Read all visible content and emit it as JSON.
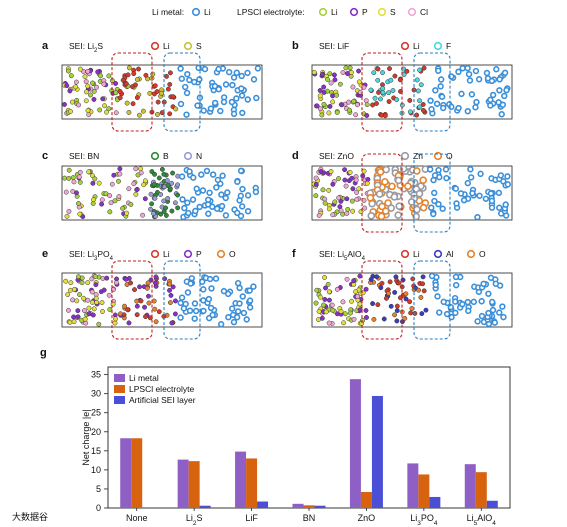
{
  "legend_top": {
    "li_metal_label": "Li metal:",
    "li_metal_items": [
      {
        "label": "Li",
        "color": "#3b8fd9"
      }
    ],
    "electrolyte_label": "LPSCl electrolyte:",
    "electrolyte_items": [
      {
        "label": "Li",
        "color": "#a6d13b"
      },
      {
        "label": "P",
        "color": "#8a2fc9"
      },
      {
        "label": "S",
        "color": "#e3df3a"
      },
      {
        "label": "Cl",
        "color": "#f2a6d6"
      }
    ]
  },
  "panels": [
    {
      "letter": "a",
      "sei_label": "SEI: Li",
      "sei_sub": "2",
      "sei_tail": "S",
      "legend": [
        {
          "label": "Li",
          "color": "#d43a2a"
        },
        {
          "label": "S",
          "color": "#c9c23a"
        }
      ]
    },
    {
      "letter": "b",
      "sei_label": "SEI: LiF",
      "sei_sub": "",
      "sei_tail": "",
      "legend": [
        {
          "label": "Li",
          "color": "#d43a2a"
        },
        {
          "label": "F",
          "color": "#46d7df"
        }
      ]
    },
    {
      "letter": "c",
      "sei_label": "SEI: BN",
      "sei_sub": "",
      "sei_tail": "",
      "legend": [
        {
          "label": "B",
          "color": "#2f8a3a"
        },
        {
          "label": "N",
          "color": "#9b9ad8"
        }
      ]
    },
    {
      "letter": "d",
      "sei_label": "SEI: ZnO",
      "sei_sub": "",
      "sei_tail": "",
      "legend": [
        {
          "label": "Zn",
          "color": "#9a9aa3"
        },
        {
          "label": "O",
          "color": "#e6832a"
        }
      ]
    },
    {
      "letter": "e",
      "sei_label": "SEI: Li",
      "sei_sub": "3",
      "sei_tail": "PO",
      "sei_sub2": "4",
      "legend": [
        {
          "label": "Li",
          "color": "#d43a2a"
        },
        {
          "label": "P",
          "color": "#8a2fc9"
        },
        {
          "label": "O",
          "color": "#e6832a"
        }
      ]
    },
    {
      "letter": "f",
      "sei_label": "SEI: Li",
      "sei_sub": "5",
      "sei_tail": "AlO",
      "sei_sub2": "4",
      "legend": [
        {
          "label": "Li",
          "color": "#d43a2a"
        },
        {
          "label": "Al",
          "color": "#3a3ac2"
        },
        {
          "label": "O",
          "color": "#e6832a"
        }
      ]
    }
  ],
  "chart_letter": "g",
  "chart_data": {
    "type": "bar",
    "categories": [
      "None",
      "Li2S",
      "LiF",
      "BN",
      "ZnO",
      "Li3PO4",
      "Li5AlO4"
    ],
    "category_display": [
      {
        "main": "None",
        "parts": []
      },
      {
        "main": "Li",
        "parts": [
          {
            "sub": "2"
          },
          {
            "text": "S"
          }
        ]
      },
      {
        "main": "LiF",
        "parts": []
      },
      {
        "main": "BN",
        "parts": []
      },
      {
        "main": "ZnO",
        "parts": []
      },
      {
        "main": "Li",
        "parts": [
          {
            "sub": "3"
          },
          {
            "text": "PO"
          },
          {
            "sub": "4"
          }
        ]
      },
      {
        "main": "Li",
        "parts": [
          {
            "sub": "5"
          },
          {
            "text": "AlO"
          },
          {
            "sub": "4"
          }
        ]
      }
    ],
    "series": [
      {
        "name": "Li metal",
        "color": "#8e5fc4",
        "values": [
          18.3,
          12.7,
          14.8,
          1.1,
          33.8,
          11.7,
          11.5
        ]
      },
      {
        "name": "LPSCl electrolyte",
        "color": "#d8630f",
        "values": [
          18.3,
          12.3,
          13.0,
          0.7,
          4.2,
          8.8,
          9.4
        ]
      },
      {
        "name": "Artificial SEI layer",
        "color": "#4a4fd6",
        "values": [
          null,
          0.6,
          1.7,
          0.6,
          29.4,
          2.9,
          1.9
        ]
      }
    ],
    "xlabel": "",
    "ylabel": "Net charge |e|",
    "ylim": [
      0,
      37
    ],
    "yticks": [
      0,
      5,
      10,
      15,
      20,
      25,
      30,
      35
    ],
    "legend_position": "top-left"
  },
  "watermark": "大数据谷"
}
